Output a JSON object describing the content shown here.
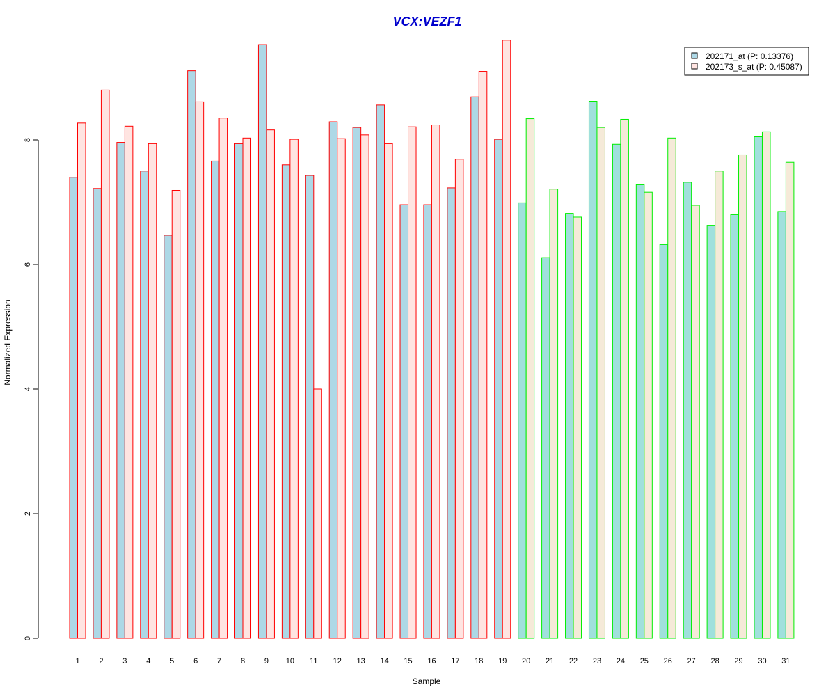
{
  "chart_data": {
    "type": "bar",
    "title": "VCX:VEZF1",
    "xlabel": "Sample",
    "ylabel": "Normalized Expression",
    "ylim": [
      0,
      9.6
    ],
    "yticks": [
      0,
      2,
      4,
      6,
      8
    ],
    "grid": false,
    "legend_position": "top-right",
    "categories": [
      "1",
      "2",
      "3",
      "4",
      "5",
      "6",
      "7",
      "8",
      "9",
      "10",
      "11",
      "12",
      "13",
      "14",
      "15",
      "16",
      "17",
      "18",
      "19",
      "20",
      "21",
      "22",
      "23",
      "24",
      "25",
      "26",
      "27",
      "28",
      "29",
      "30",
      "31"
    ],
    "series": [
      {
        "name": "202171_at (P: 0.13376)",
        "values": [
          7.4,
          7.22,
          7.96,
          7.5,
          6.47,
          9.11,
          7.66,
          7.94,
          9.53,
          7.6,
          7.43,
          8.29,
          8.2,
          8.56,
          6.96,
          6.96,
          7.23,
          8.69,
          8.01,
          6.99,
          6.11,
          6.82,
          8.62,
          7.93,
          7.28,
          6.32,
          7.32,
          6.63,
          6.8,
          8.05,
          6.85
        ]
      },
      {
        "name": "202173_s_at (P: 0.45087)",
        "values": [
          8.27,
          8.8,
          8.22,
          7.94,
          7.19,
          8.61,
          8.35,
          8.03,
          8.16,
          8.01,
          4.0,
          8.02,
          8.08,
          7.94,
          8.21,
          8.24,
          7.69,
          9.1,
          9.6,
          8.34,
          7.21,
          6.76,
          8.2,
          8.33,
          7.16,
          8.03,
          6.95,
          7.5,
          7.76,
          8.13,
          7.64
        ]
      }
    ],
    "group_split_after": 19,
    "colors": {
      "series1_fill": "#add8e6",
      "series2_fill": "#ffe4e1",
      "series1_fill_group2": "#a0e0dc",
      "series2_fill_group2": "#f5ead8",
      "border_group1": "#ff0000",
      "border_group2": "#00ee00",
      "title": "#0000cd"
    }
  }
}
